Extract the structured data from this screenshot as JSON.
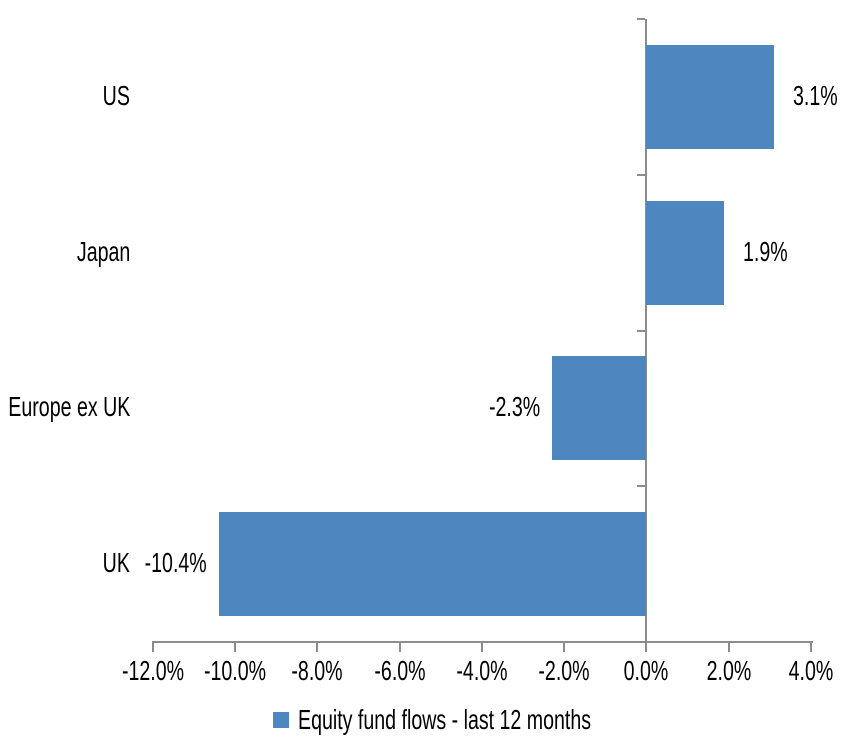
{
  "chart_data": {
    "type": "bar",
    "orientation": "horizontal",
    "title": "",
    "xlabel": "",
    "ylabel": "",
    "categories": [
      "US",
      "Japan",
      "Europe ex UK",
      "UK"
    ],
    "series": [
      {
        "name": "Equity fund flows - last 12 months",
        "values": [
          3.1,
          1.9,
          -2.3,
          -10.4
        ]
      }
    ],
    "data_labels": [
      "3.1%",
      "1.9%",
      "-2.3%",
      "-10.4%"
    ],
    "series_name": "Equity fund flows - last 12 months",
    "xlim": [
      -12,
      4
    ],
    "x_tick_step": 2,
    "x_tick_labels": [
      "-12.0%",
      "-10.0%",
      "-8.0%",
      "-6.0%",
      "-4.0%",
      "-2.0%",
      "0.0%",
      "2.0%",
      "4.0%"
    ],
    "grid": false,
    "legend_position": "bottom",
    "bar_color": "#4e87c0",
    "axis_color": "#8c8c8c",
    "text_color": "#000000",
    "background_color": "#ffffff"
  }
}
